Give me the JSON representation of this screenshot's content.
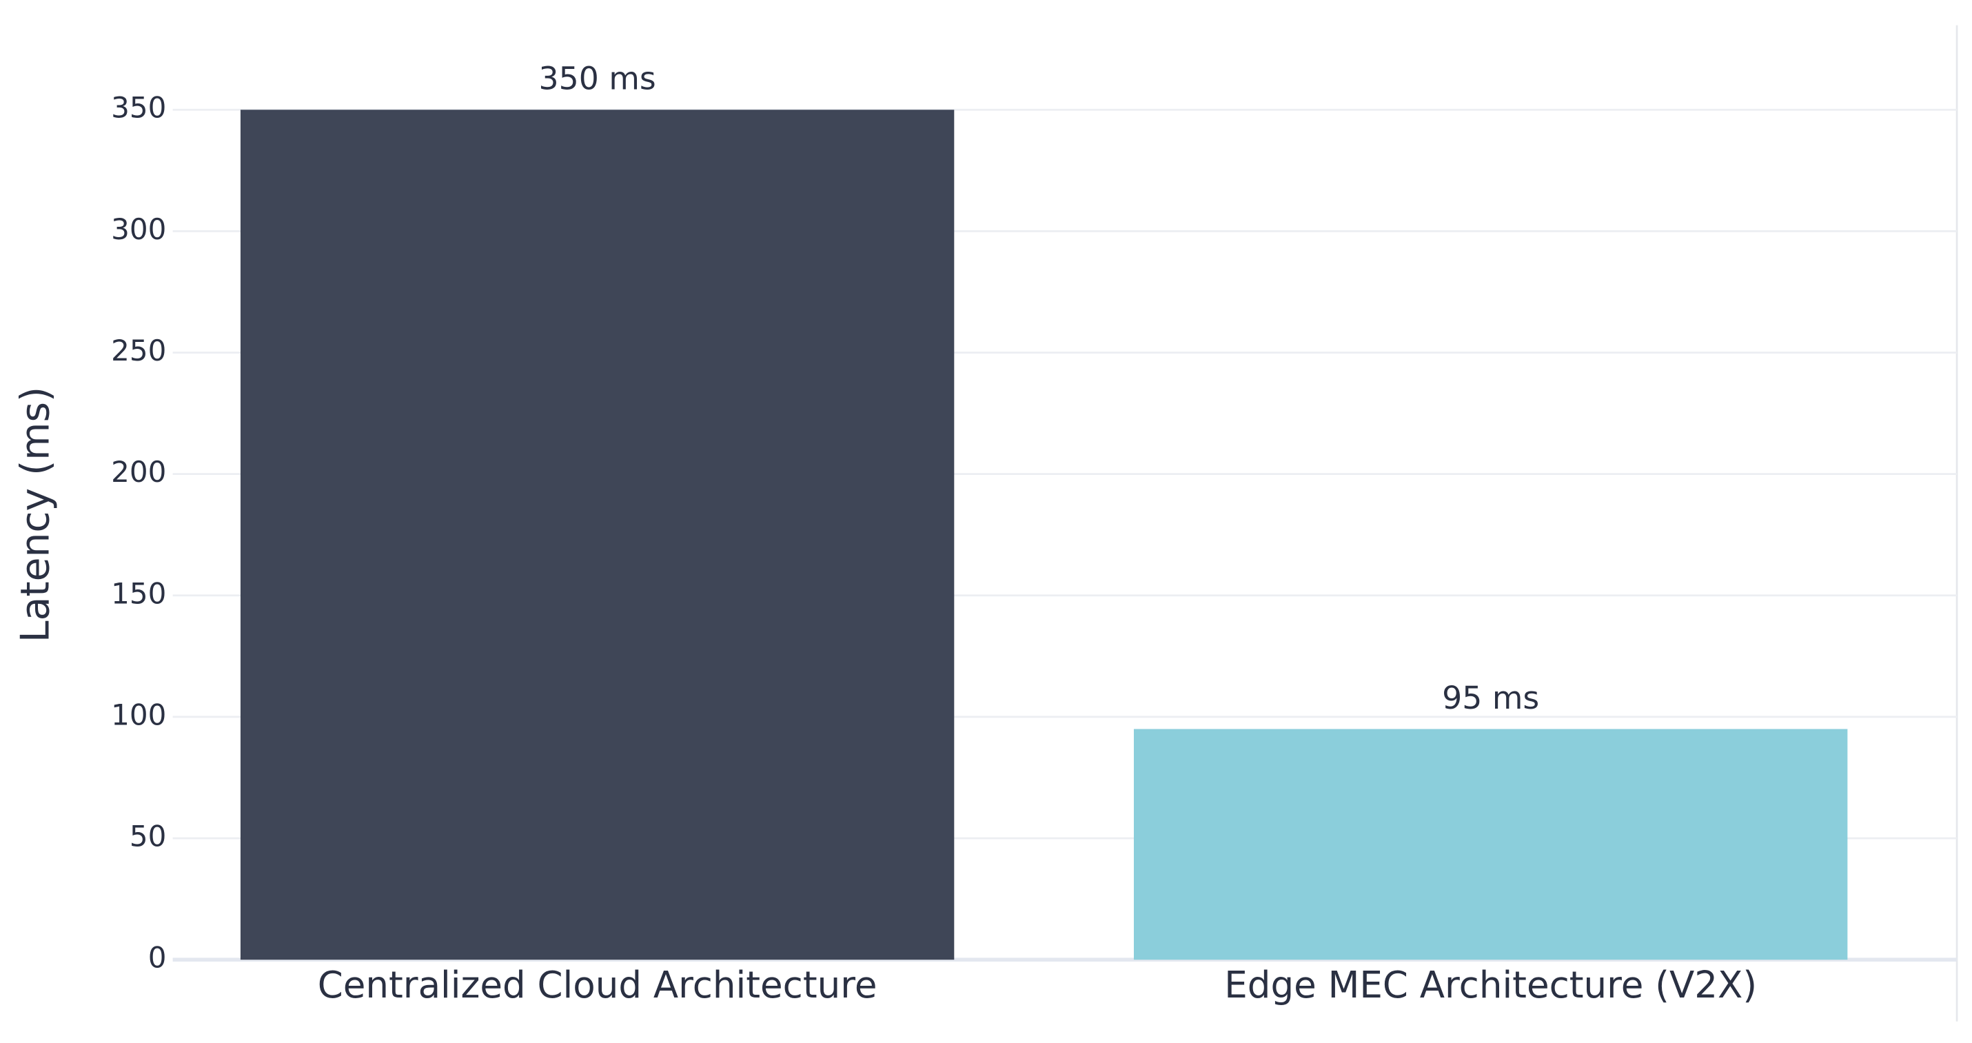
{
  "chart_data": {
    "type": "bar",
    "ylabel": "Latency (ms)",
    "categories": [
      "Centralized Cloud Architecture",
      "Edge MEC Architecture (V2X)"
    ],
    "values": [
      350,
      95
    ],
    "value_labels": [
      "350 ms",
      "95 ms"
    ],
    "colors": [
      "#3f4657",
      "#8bcedb"
    ],
    "ylim": [
      0,
      350
    ],
    "yticks": [
      0,
      50,
      100,
      150,
      200,
      250,
      300,
      350
    ],
    "grid": true
  }
}
